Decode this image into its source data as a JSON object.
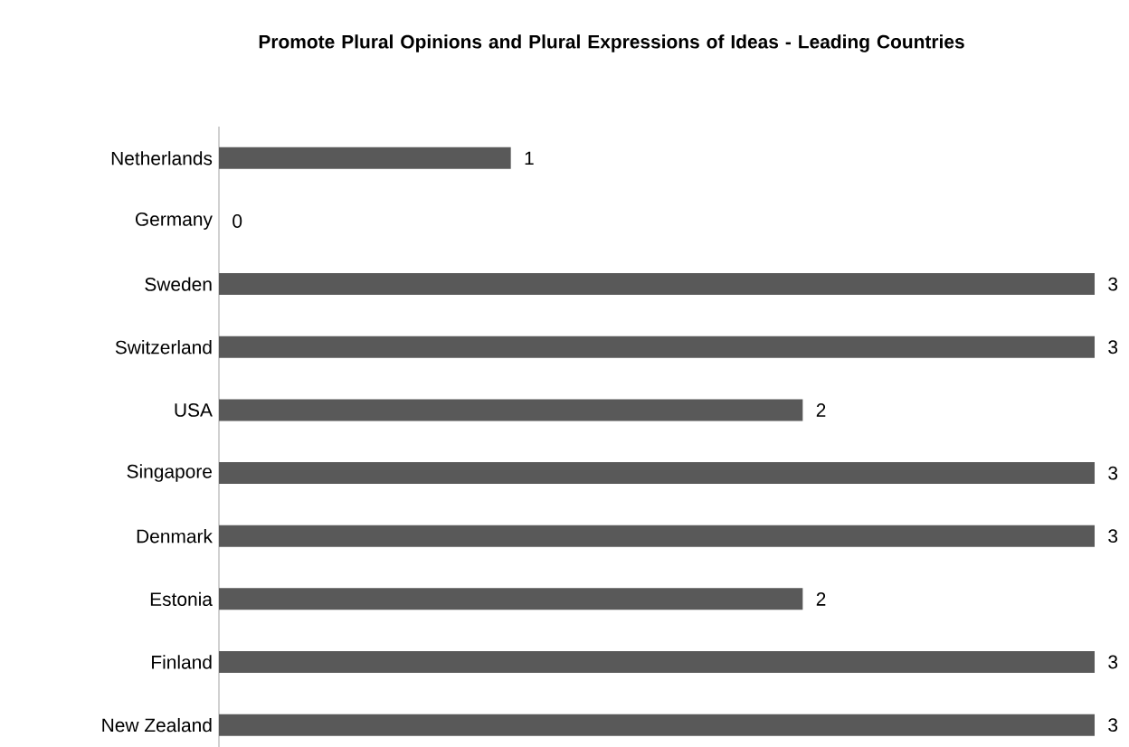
{
  "chart_data": {
    "type": "bar",
    "orientation": "horizontal",
    "title": "Promote Plural Opinions and Plural Expressions of Ideas - Leading Countries",
    "categories": [
      "Netherlands",
      "Germany",
      "Sweden",
      "Switzerland",
      "USA",
      "Singapore",
      "Denmark",
      "Estonia",
      "Finland",
      "New Zealand"
    ],
    "values": [
      1,
      0,
      3,
      3,
      2,
      3,
      3,
      2,
      3,
      3
    ],
    "color": "#595959",
    "data_labels": true
  }
}
